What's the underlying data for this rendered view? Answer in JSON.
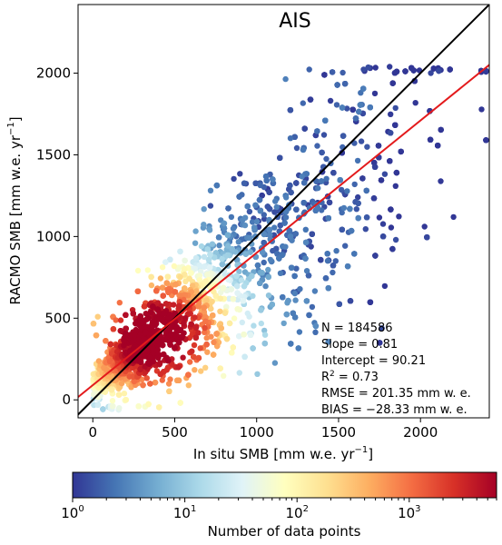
{
  "chart_data": {
    "type": "scatter",
    "title": "AIS",
    "xlabel_main": "In situ SMB [mm w.e. yr",
    "xlabel_exp": "−1",
    "xlabel_end": "]",
    "ylabel_main": "RACMO SMB [mm w.e. yr",
    "ylabel_exp": "−1",
    "ylabel_end": "]",
    "xlim": [
      -90,
      2420
    ],
    "ylim": [
      -110,
      2420
    ],
    "xticks": [
      0,
      500,
      1000,
      1500,
      2000
    ],
    "yticks": [
      0,
      500,
      1000,
      1500,
      2000
    ],
    "one_to_one_line": {
      "color": "#000000"
    },
    "regression_line": {
      "slope": 0.81,
      "intercept": 90.21,
      "color": "#e31a1c"
    },
    "stats": {
      "n": "N = 184586",
      "slope": "Slope = 0.81",
      "intercept": "Intercept = 90.21",
      "r2_main": "R",
      "r2_exp": "2",
      "r2_rest": " = 0.73",
      "rmse": "RMSE = 201.35 mm w. e.",
      "bias": "BIAS = −28.33 mm w. e."
    },
    "colorbar": {
      "label": "Number of data points",
      "scale": "log",
      "range": [
        1,
        6000
      ],
      "ticks": [
        {
          "base": "10",
          "exp": "0",
          "value": 1
        },
        {
          "base": "10",
          "exp": "1",
          "value": 10
        },
        {
          "base": "10",
          "exp": "2",
          "value": 100
        },
        {
          "base": "10",
          "exp": "3",
          "value": 1000
        }
      ],
      "colormap": "RdYlBu_r",
      "colormap_stops": [
        "#313695",
        "#4575b4",
        "#74add1",
        "#abd9e9",
        "#e0f3f8",
        "#ffffbf",
        "#fee090",
        "#fdae61",
        "#f46d43",
        "#d73027",
        "#a50026"
      ]
    }
  }
}
